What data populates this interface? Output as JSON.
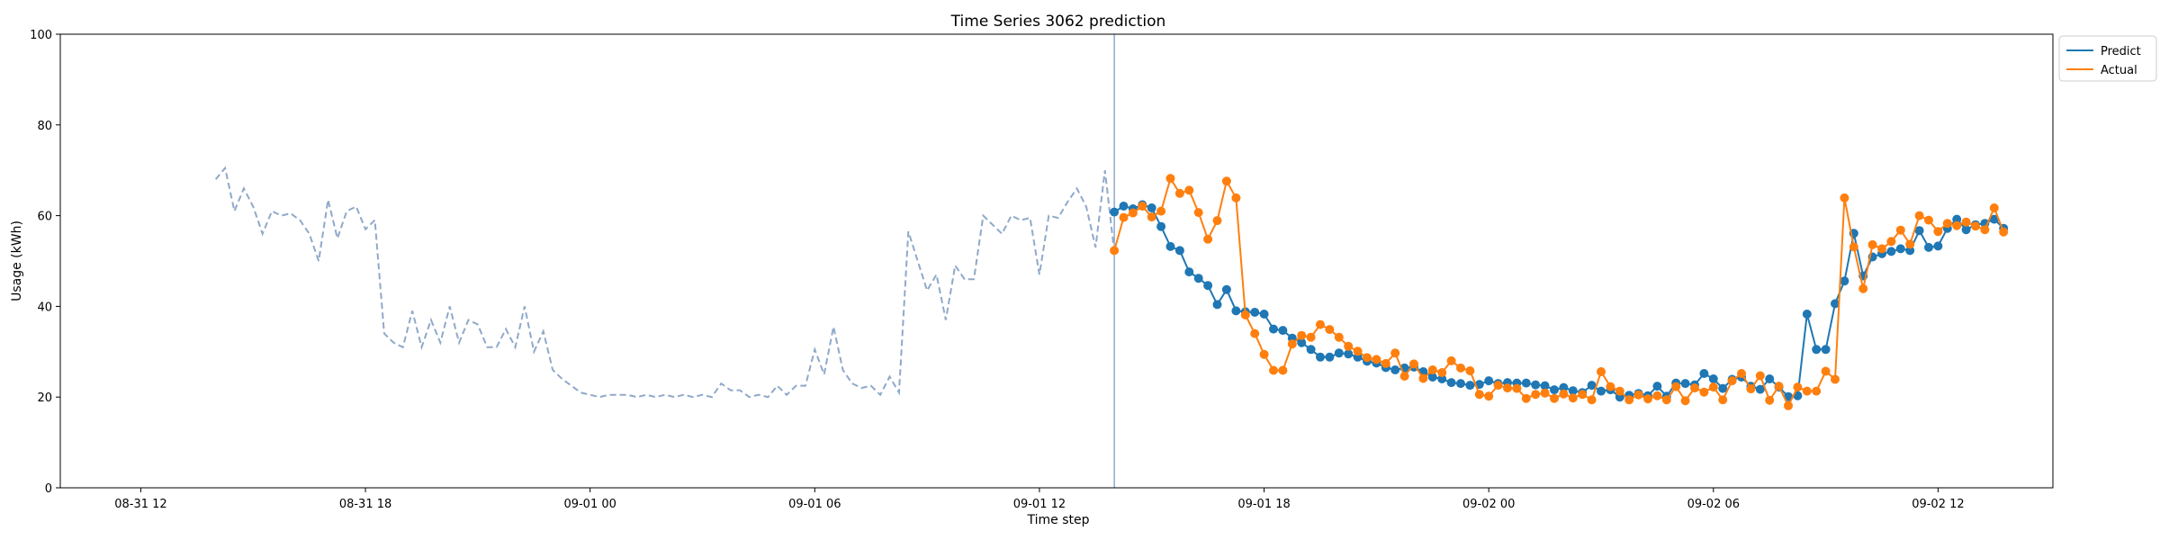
{
  "chart_data": {
    "type": "line",
    "title": "Time Series 3062 prediction",
    "xlabel": "Time step",
    "ylabel": "Usage (kWh)",
    "ylim": [
      0,
      100
    ],
    "yticks": [
      0,
      20,
      40,
      60,
      80,
      100
    ],
    "xlim": [
      "2024-08-31 09:51",
      "2024-09-02 15:04"
    ],
    "xticks": [
      {
        "t": "2024-08-31 12:00",
        "label": "08-31 12"
      },
      {
        "t": "2024-08-31 18:00",
        "label": "08-31 18"
      },
      {
        "t": "2024-09-01 00:00",
        "label": "09-01 00"
      },
      {
        "t": "2024-09-01 06:00",
        "label": "09-01 06"
      },
      {
        "t": "2024-09-01 12:00",
        "label": "09-01 12"
      },
      {
        "t": "2024-09-01 18:00",
        "label": "09-01 18"
      },
      {
        "t": "2024-09-02 00:00",
        "label": "09-02 00"
      },
      {
        "t": "2024-09-02 06:00",
        "label": "09-02 06"
      },
      {
        "t": "2024-09-02 12:00",
        "label": "09-02 12"
      }
    ],
    "grid": false,
    "legend": "top-right, outside",
    "interval_minutes": 15,
    "history": {
      "start": "2024-08-31 14:00",
      "color": "#8fa9c9",
      "style": "dashed",
      "values": [
        68.0,
        70.5,
        61.0,
        66.0,
        62.0,
        56.0,
        61.0,
        60.0,
        60.5,
        59.0,
        56.0,
        50.0,
        63.5,
        55.0,
        61.0,
        62.0,
        57.0,
        59.0,
        34.0,
        32.0,
        31.0,
        39.0,
        31.0,
        37.0,
        32.0,
        40.0,
        32.0,
        37.0,
        36.0,
        31.0,
        31.0,
        35.0,
        31.0,
        40.0,
        30.0,
        34.5,
        26.0,
        24.0,
        22.5,
        21.0,
        20.5,
        20.0,
        20.5,
        20.5,
        20.5,
        20.0,
        20.5,
        20.0,
        20.5,
        20.0,
        20.5,
        20.0,
        20.5,
        20.0,
        23.0,
        21.5,
        21.5,
        20.0,
        20.5,
        20.0,
        22.5,
        20.5,
        22.5,
        22.5,
        30.5,
        25.0,
        35.5,
        26.0,
        23.0,
        22.0,
        22.5,
        20.5,
        24.5,
        21.0,
        56.5,
        50.0,
        43.5,
        47.0,
        37.0,
        49.0,
        46.0,
        46.0,
        60.0,
        58.0,
        56.0,
        60.0,
        59.0,
        59.5,
        47.0,
        60.0,
        59.5,
        63.0,
        66.0,
        62.0,
        53.0,
        70.0,
        52.0
      ]
    },
    "forecast_start": "2024-09-01 14:00",
    "series": [
      {
        "name": "Predict",
        "color": "#1f77b4",
        "values": [
          60.8,
          62.1,
          61.5,
          62.4,
          61.7,
          57.6,
          53.2,
          52.3,
          47.6,
          46.2,
          44.6,
          40.4,
          43.7,
          39.0,
          38.8,
          38.7,
          38.3,
          35.0,
          34.7,
          33.0,
          32.0,
          30.5,
          28.8,
          28.8,
          29.7,
          29.5,
          28.8,
          27.9,
          27.5,
          26.5,
          26.0,
          26.4,
          26.6,
          25.6,
          24.4,
          24.0,
          23.2,
          23.0,
          22.6,
          22.8,
          23.6,
          23.0,
          23.2,
          23.1,
          23.1,
          22.7,
          22.5,
          21.6,
          22.1,
          21.4,
          21.0,
          22.6,
          21.3,
          21.6,
          20.0,
          20.4,
          20.8,
          20.3,
          22.4,
          20.2,
          23.1,
          23.0,
          22.7,
          25.2,
          24.0,
          21.9,
          23.9,
          24.4,
          22.4,
          21.7,
          24.0,
          22.2,
          20.1,
          20.3,
          38.3,
          30.5,
          30.5,
          40.6,
          45.6,
          56.1,
          46.7,
          50.9,
          51.6,
          52.1,
          52.7,
          52.3,
          56.7,
          53.0,
          53.3,
          57.2,
          59.2,
          56.9,
          58.0,
          58.3,
          59.2,
          57.2
        ]
      },
      {
        "name": "Actual",
        "color": "#ff7f0e",
        "values": [
          52.3,
          59.6,
          60.6,
          62.1,
          59.7,
          61.0,
          68.2,
          64.9,
          65.6,
          60.7,
          54.8,
          58.9,
          67.6,
          63.9,
          38.1,
          34.0,
          29.4,
          25.9,
          25.9,
          31.7,
          33.6,
          33.2,
          36.0,
          34.9,
          33.2,
          31.2,
          30.1,
          28.7,
          28.3,
          27.4,
          29.7,
          24.6,
          27.3,
          24.1,
          26.0,
          25.4,
          28.0,
          26.4,
          25.8,
          20.6,
          20.2,
          22.6,
          22.0,
          21.9,
          19.7,
          20.6,
          20.9,
          19.7,
          20.7,
          19.8,
          20.6,
          19.4,
          25.6,
          22.3,
          21.3,
          19.4,
          20.5,
          19.6,
          20.3,
          19.4,
          22.3,
          19.2,
          22.0,
          21.1,
          22.2,
          19.4,
          23.6,
          25.2,
          21.8,
          24.7,
          19.3,
          22.4,
          18.1,
          22.2,
          21.3,
          21.3,
          25.7,
          23.9,
          63.9,
          53.1,
          43.9,
          53.6,
          52.7,
          54.3,
          56.8,
          53.7,
          60.0,
          59.0,
          56.5,
          58.3,
          57.8,
          58.6,
          57.7,
          56.9,
          61.7,
          56.4
        ]
      }
    ]
  }
}
